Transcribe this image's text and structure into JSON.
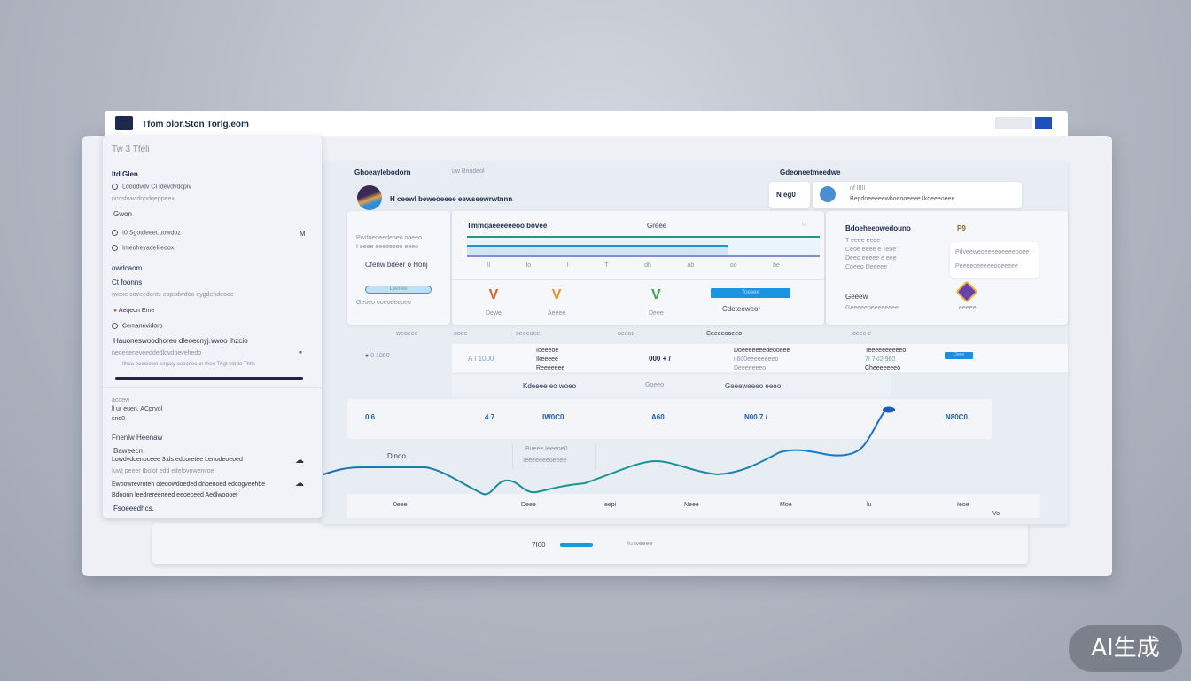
{
  "window": {
    "title": "Tfom olor.Ston Torlg.eom",
    "accent": "#1f4fbf"
  },
  "sidebar": {
    "header": "Tw 3 Tfeli",
    "items": [
      {
        "label": "Itd Glen"
      },
      {
        "label": "Ldoodvdv CI ldevdvdcpiv"
      },
      {
        "label": "ncosfwwidnodqeppeex"
      },
      {
        "label": "Gwon"
      },
      {
        "label": "I0 Sgotdeeet.uowdoz",
        "badge": "M"
      },
      {
        "label": "Imeoheyadeliledox"
      },
      {
        "label": "owdcaom"
      },
      {
        "label": "Ct foonns"
      },
      {
        "label": "Iwexe coveedcnts eppsdwdoo eygdehdeooe"
      },
      {
        "label": "Aeqeon Eme"
      },
      {
        "label": "Cemanevidoro"
      },
      {
        "label": "Hauoneswoodhoreo dleoecnyj.vwoo Ihzcio"
      },
      {
        "label": "neoeseneveeddedlovdbevehedo"
      },
      {
        "label": "Ilhea peeeiewo eirgaiy ooooneeun rhoe  Thgt ydrdo Thtls"
      }
    ],
    "lower": [
      {
        "label": "acoew"
      },
      {
        "label": "ll ur euen. ACprvol"
      },
      {
        "label": "snd0"
      },
      {
        "label": "Fnenlw Heenaw"
      },
      {
        "label": "Baweecn"
      },
      {
        "label": "Lowdvdoenoceee 3.ds edcoretee Lenodeoeoed"
      },
      {
        "label": "Iuwt peeer Ibolot edd eitelovowenvoe"
      },
      {
        "label": "Ewoowrevroteh oteoowdoeded dnoenoed edcogveehbe"
      },
      {
        "label": "Bdoonn leedrereeneed eeoeceed Aedlwoooet"
      },
      {
        "label": "Fsoeeedhcs."
      }
    ]
  },
  "main": {
    "top_left_label": "Ghoeaylebodorn",
    "top_left_sub": "uw Bnodeol",
    "top_right_label": "Gdeoneetmeedwe",
    "profile_text": "H ceewl beweoeeee eewseewrwtnnn",
    "user_tag": "N eg0",
    "user_id": "nf IIIII",
    "user_desc": "Bepdoeeeeewboeooeeee Ikoeeeoeee",
    "left_col": [
      "Pwdoeoeedeoeo ooeeo",
      "I eeee eeeeeeeo eeeo",
      "Cfenw bdeer o Honj",
      "Geoeo ooeoeeeoeo"
    ],
    "left_button": "Leenee",
    "progress_title": "Tmmqaeeeeeeoo bovee",
    "progress_mid": "Greee",
    "progress_ticks": [
      "ll",
      "lo",
      "I",
      "T",
      "dh",
      "ab",
      "oo",
      "be"
    ],
    "progress": 0.74,
    "checks": [
      {
        "label": "Dewe",
        "color": "#d0642a"
      },
      {
        "label": "Aeeee",
        "color": "#e6932a"
      },
      {
        "label": "Deee",
        "color": "#36a84a"
      }
    ],
    "action_button": "Toeeee",
    "action_link": "Cdeteeweor",
    "right_title": "Bdoeheeowedouno",
    "right_badge": "P9",
    "right_rows": [
      "T eeee eeee",
      "Ceoe eeee e Teoe",
      "Deeo eeeee e eee",
      "Coeeo Deeeee"
    ],
    "popup_items": [
      "Pdveeweoeeeeoeeeeooee",
      "Peeeeoeeeeeooeeeee"
    ],
    "right_bottom_title": "Geeew",
    "right_bottom_sub": "Geeeeeoeeeeeeee",
    "right_bottom_badge": "eeeee",
    "table_headers": [
      "weoeee",
      "ooee",
      "oeeeoee",
      "oeeoo",
      "Ceeeeooeeo",
      "oeee e"
    ],
    "row1": [
      "0 1000",
      "A I 1000",
      "Ioeeeoe",
      "Ikeeeee",
      "Reeeeeee",
      "000 + /",
      "Doeeeeeeedeooeee",
      "i 600eeeeeeeeo",
      "Deeeeeeeo",
      "Teeeeeeeeeeo",
      "7I 7kl2 960",
      "Cheeeeeeeo"
    ],
    "row1_button": "Ooee",
    "row2": [
      "Kdeeee eo woeo",
      "Goeeo",
      "Geeeweeeo eeeo"
    ],
    "stats": [
      "0 6",
      "4 7",
      "IW0C0",
      "A60",
      "N00 7 /",
      "N80C0"
    ],
    "chart_label": "Dlnoo",
    "chart_tooltip": [
      "Bueee Ieeeoe0",
      "Teeeeeeeoeeee"
    ],
    "axis_labels": [
      "0eee",
      "Deee",
      "eepi",
      "Neee",
      "Moe",
      "lu",
      "Ieoe",
      "Vo"
    ],
    "footer_value": "7I60",
    "footer_link": "Iu weeee"
  },
  "watermark": "AI生成"
}
